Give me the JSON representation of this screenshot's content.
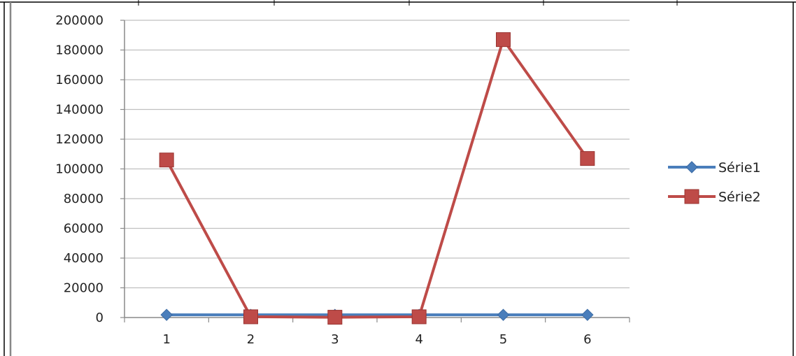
{
  "chart_data": {
    "type": "line",
    "title": "",
    "xlabel": "",
    "ylabel": "",
    "categories": [
      "1",
      "2",
      "3",
      "4",
      "5",
      "6"
    ],
    "y_ticks": [
      "0",
      "20000",
      "40000",
      "60000",
      "80000",
      "100000",
      "120000",
      "140000",
      "160000",
      "180000",
      "200000"
    ],
    "ylim": [
      0,
      200000
    ],
    "grid": "horizontal",
    "legend_position": "right",
    "series": [
      {
        "name": "Série1",
        "values": [
          1800,
          1800,
          1800,
          1800,
          1800,
          1800
        ],
        "color": "#4a7ebb",
        "marker": "diamond"
      },
      {
        "name": "Série2",
        "values": [
          106000,
          500,
          200,
          500,
          187000,
          107000
        ],
        "color": "#be4b48",
        "marker": "square"
      }
    ]
  }
}
